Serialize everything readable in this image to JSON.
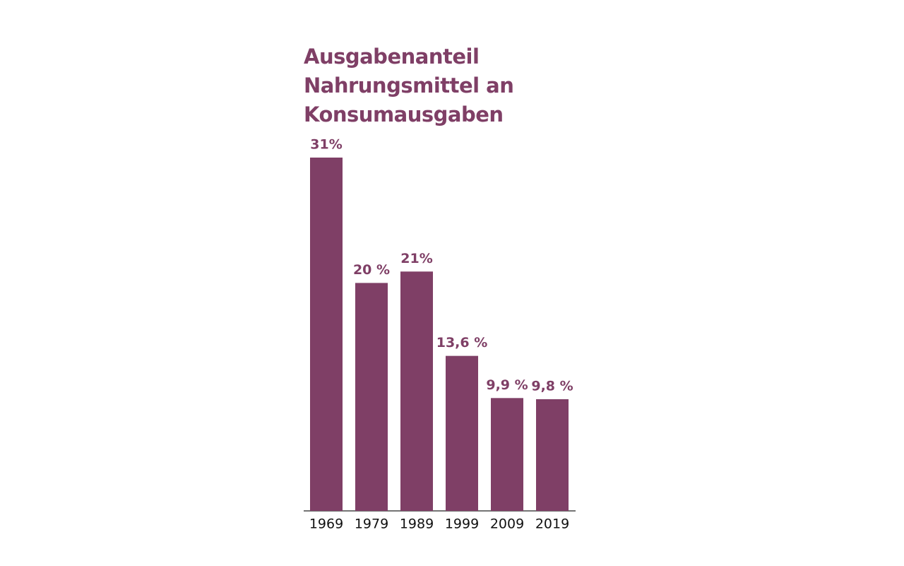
{
  "chart_data": {
    "type": "bar",
    "title": "Ausgabenanteil Nahrungsmittel an Konsumausgaben",
    "categories": [
      "1969",
      "1979",
      "1989",
      "1999",
      "2009",
      "2019"
    ],
    "values": [
      31,
      20,
      21,
      13.6,
      9.9,
      9.8
    ],
    "value_labels": [
      "31%",
      "20 %",
      "21%",
      "13,6 %",
      "9,9 %",
      "9,8 %"
    ],
    "color": "#7f3f66"
  }
}
